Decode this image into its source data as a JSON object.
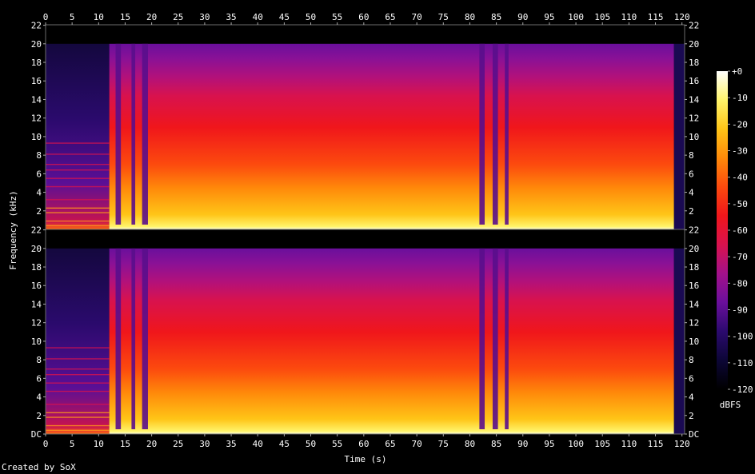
{
  "chart_data": {
    "type": "heatmap",
    "title": "",
    "xlabel": "Time (s)",
    "ylabel": "Frequency (kHz)",
    "xlim": [
      0,
      120.5
    ],
    "x_ticks": [
      0,
      5,
      10,
      15,
      20,
      25,
      30,
      35,
      40,
      45,
      50,
      55,
      60,
      65,
      70,
      75,
      80,
      85,
      90,
      95,
      100,
      105,
      110,
      115,
      120
    ],
    "channels": [
      {
        "name": "",
        "ylim": [
          0,
          22.05
        ],
        "y_ticks": [
          {
            "value": 2,
            "label": "2"
          },
          {
            "value": 4,
            "label": "4"
          },
          {
            "value": 6,
            "label": "6"
          },
          {
            "value": 8,
            "label": "8"
          },
          {
            "value": 10,
            "label": "10"
          },
          {
            "value": 12,
            "label": "12"
          },
          {
            "value": 14,
            "label": "14"
          },
          {
            "value": 16,
            "label": "16"
          },
          {
            "value": 18,
            "label": "18"
          },
          {
            "value": 20,
            "label": "20"
          },
          {
            "value": 22,
            "label": "22"
          }
        ]
      },
      {
        "name": "",
        "ylim": [
          0,
          22.05
        ],
        "y_ticks": [
          {
            "value": 0,
            "label": "DC"
          },
          {
            "value": 2,
            "label": "2"
          },
          {
            "value": 4,
            "label": "4"
          },
          {
            "value": 6,
            "label": "6"
          },
          {
            "value": 8,
            "label": "8"
          },
          {
            "value": 10,
            "label": "10"
          },
          {
            "value": 12,
            "label": "12"
          },
          {
            "value": 14,
            "label": "14"
          },
          {
            "value": 16,
            "label": "16"
          },
          {
            "value": 18,
            "label": "18"
          },
          {
            "value": 20,
            "label": "20"
          },
          {
            "value": 22,
            "label": "22"
          }
        ]
      }
    ],
    "colorbar": {
      "label": "dBFS",
      "range": [
        -120,
        0
      ],
      "ticks": [
        {
          "value": 0,
          "label": "+0"
        },
        {
          "value": -10,
          "label": "-10"
        },
        {
          "value": -20,
          "label": "-20"
        },
        {
          "value": -30,
          "label": "-30"
        },
        {
          "value": -40,
          "label": "-40"
        },
        {
          "value": -50,
          "label": "-50"
        },
        {
          "value": -60,
          "label": "-60"
        },
        {
          "value": -70,
          "label": "-70"
        },
        {
          "value": -80,
          "label": "-80"
        },
        {
          "value": -90,
          "label": "-90"
        },
        {
          "value": -100,
          "label": "-100"
        },
        {
          "value": -110,
          "label": "-110"
        },
        {
          "value": -120,
          "label": "-120"
        }
      ],
      "colors": [
        "#000000",
        "#0c0636",
        "#2b0a6e",
        "#6a0f9c",
        "#a3118a",
        "#d8124e",
        "#f0161b",
        "#fc4a0e",
        "#ff8a0a",
        "#ffc517",
        "#fff46a",
        "#ffffff"
      ]
    },
    "grid": false,
    "legend": "right",
    "quiet_intervals_s": [
      [
        0,
        12
      ],
      [
        118.5,
        120.5
      ]
    ],
    "dropout_intervals_s": [
      [
        13.2,
        14.2
      ],
      [
        16.2,
        16.9
      ],
      [
        18.2,
        19.3
      ],
      [
        81.8,
        82.8
      ],
      [
        84.3,
        85.3
      ],
      [
        86.6,
        87.3
      ]
    ],
    "bandwidth_khz": 20
  },
  "footer": "Created by SoX"
}
